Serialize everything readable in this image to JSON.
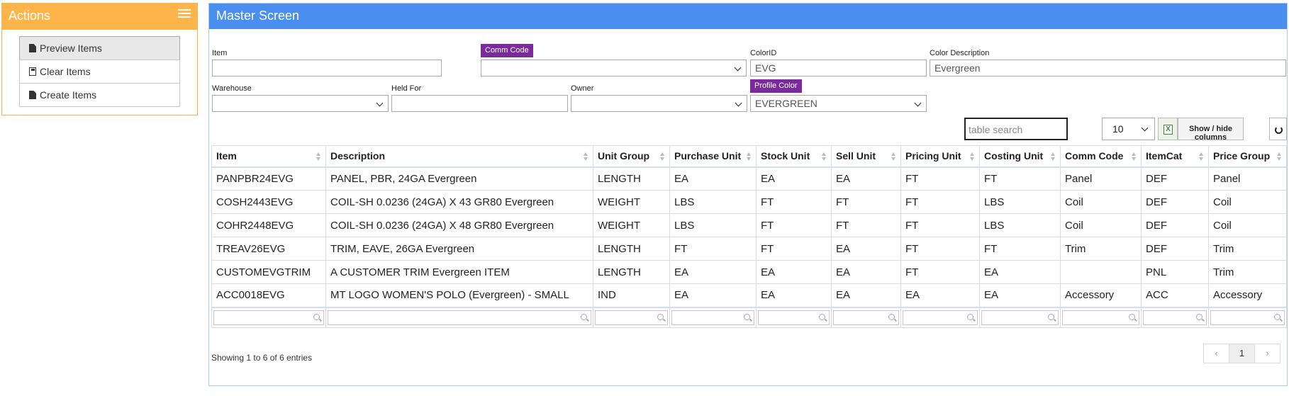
{
  "actions": {
    "title": "Actions",
    "items": [
      {
        "label": "Preview Items",
        "icon": "file-icon"
      },
      {
        "label": "Clear Items",
        "icon": "save-icon"
      },
      {
        "label": "Create Items",
        "icon": "file-icon"
      }
    ]
  },
  "master": {
    "title": "Master Screen",
    "fields": {
      "item": {
        "label": "Item",
        "value": ""
      },
      "comm_code": {
        "label": "Comm Code",
        "value": ""
      },
      "color_id": {
        "label": "ColorID",
        "value": "EVG"
      },
      "color_description": {
        "label": "Color Description",
        "value": "Evergreen"
      },
      "warehouse": {
        "label": "Warehouse",
        "value": ""
      },
      "held_for": {
        "label": "Held For",
        "value": ""
      },
      "owner": {
        "label": "Owner",
        "value": ""
      },
      "profile_color": {
        "label": "Profile Color",
        "value": "EVERGREEN"
      }
    },
    "toolbar": {
      "search_placeholder": "table search",
      "page_size": "10",
      "show_hide_label": "Show / hide columns"
    },
    "table": {
      "columns": [
        "Item",
        "Description",
        "Unit Group",
        "Purchase Unit",
        "Stock Unit",
        "Sell Unit",
        "Pricing Unit",
        "Costing Unit",
        "Comm Code",
        "ItemCat",
        "Price Group"
      ],
      "rows": [
        [
          "PANPBR24EVG",
          "PANEL, PBR, 24GA Evergreen",
          "LENGTH",
          "EA",
          "EA",
          "EA",
          "FT",
          "FT",
          "Panel",
          "DEF",
          "Panel"
        ],
        [
          "COSH2443EVG",
          "COIL-SH 0.0236 (24GA) X 43 GR80 Evergreen",
          "WEIGHT",
          "LBS",
          "FT",
          "FT",
          "FT",
          "LBS",
          "Coil",
          "DEF",
          "Coil"
        ],
        [
          "COHR2448EVG",
          "COIL-SH 0.0236 (24GA) X 48 GR80 Evergreen",
          "WEIGHT",
          "LBS",
          "FT",
          "FT",
          "FT",
          "LBS",
          "Coil",
          "DEF",
          "Coil"
        ],
        [
          "TREAV26EVG",
          "TRIM, EAVE, 26GA Evergreen",
          "LENGTH",
          "FT",
          "FT",
          "EA",
          "FT",
          "FT",
          "Trim",
          "DEF",
          "Trim"
        ],
        [
          "CUSTOMEVGTRIM",
          "A CUSTOMER TRIM Evergreen ITEM",
          "LENGTH",
          "EA",
          "EA",
          "EA",
          "FT",
          "EA",
          "",
          "PNL",
          "Trim"
        ],
        [
          "ACC0018EVG",
          "MT LOGO WOMEN'S POLO (Evergreen) - SMALL",
          "IND",
          "EA",
          "EA",
          "EA",
          "EA",
          "EA",
          "Accessory",
          "ACC",
          "Accessory"
        ]
      ]
    },
    "footer": {
      "showing": "Showing 1 to 6 of 6 entries",
      "prev": "‹",
      "page": "1",
      "next": "›"
    }
  }
}
